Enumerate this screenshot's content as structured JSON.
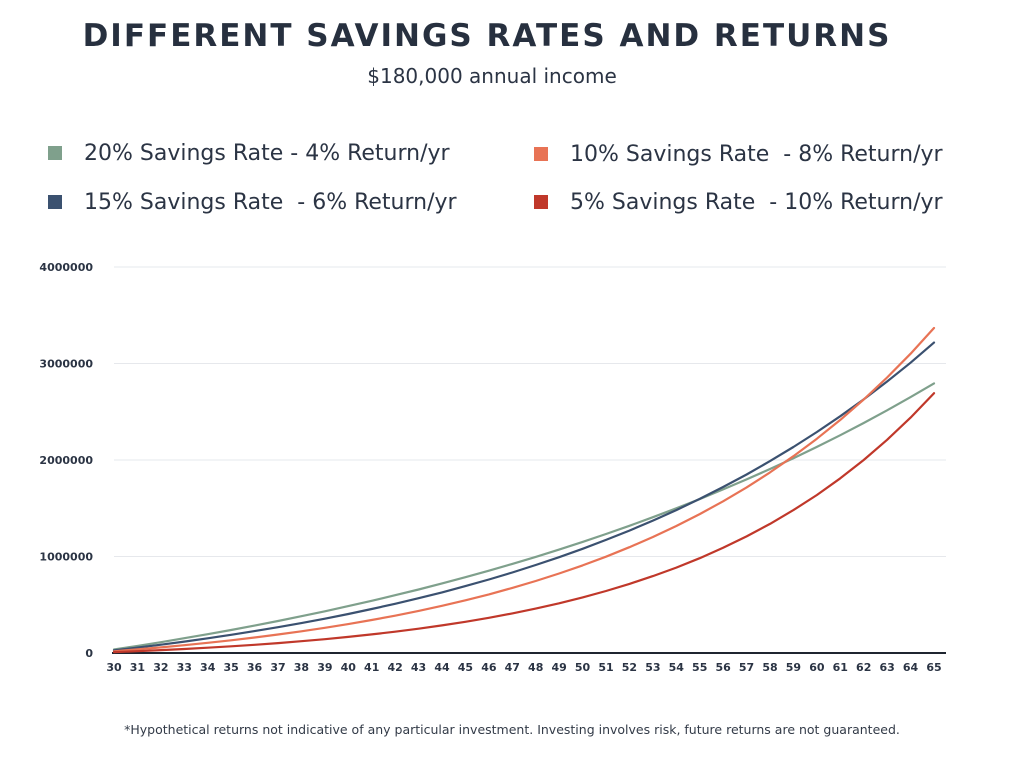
{
  "header": {
    "title": "DIFFERENT SAVINGS RATES AND RETURNS",
    "subtitle": "$180,000 annual income"
  },
  "footnote": "*Hypothetical returns not indicative of any particular investment. Investing involves risk, future returns are not guaranteed.",
  "chart_data": {
    "type": "line",
    "title": "DIFFERENT SAVINGS RATES AND RETURNS",
    "subtitle": "$180,000 annual income",
    "xlabel": "",
    "ylabel": "",
    "x": [
      30,
      31,
      32,
      33,
      34,
      35,
      36,
      37,
      38,
      39,
      40,
      41,
      42,
      43,
      44,
      45,
      46,
      47,
      48,
      49,
      50,
      51,
      52,
      53,
      54,
      55,
      56,
      57,
      58,
      59,
      60,
      61,
      62,
      63,
      64,
      65
    ],
    "x_tick_labels": [
      "30",
      "31",
      "32",
      "33",
      "34",
      "35",
      "36",
      "37",
      "38",
      "39",
      "40",
      "41",
      "42",
      "43",
      "44",
      "45",
      "46",
      "47",
      "48",
      "49",
      "50",
      "51",
      "52",
      "53",
      "54",
      "55",
      "56",
      "57",
      "58",
      "59",
      "60",
      "61",
      "62",
      "63",
      "64",
      "65"
    ],
    "ylim": [
      0,
      4000000
    ],
    "y_ticks": [
      0,
      1000000,
      2000000,
      3000000,
      4000000
    ],
    "y_tick_labels": [
      "0",
      "1000000",
      "2000000",
      "3000000",
      "4000000"
    ],
    "grid": "horizontal",
    "legend_position": "top",
    "series": [
      {
        "name": "20% Savings Rate - 4% Return/yr",
        "color": "#7fa08c",
        "values": [
          36000,
          73440,
          112378,
          152873,
          194988,
          238787,
          284339,
          331712,
          380981,
          432220,
          485509,
          540929,
          598566,
          658508,
          720849,
          785683,
          853110,
          923235,
          996164,
          1072011,
          1150891,
          1232927,
          1318244,
          1406973,
          1499252,
          1595222,
          1695031,
          1798832,
          1906785,
          2019056,
          2135818,
          2257251,
          2383541,
          2514883,
          2651478,
          2793537
        ]
      },
      {
        "name": "15% Savings Rate  - 6% Return/yr",
        "color": "#3b5170",
        "values": [
          27000,
          55620,
          85957,
          118115,
          152202,
          188334,
          226634,
          267232,
          310266,
          355882,
          404234,
          455488,
          509817,
          567406,
          628450,
          693157,
          761746,
          834451,
          911518,
          993209,
          1079802,
          1171590,
          1268885,
          1372018,
          1481339,
          1597219,
          1720052,
          1850255,
          1988270,
          2134566,
          2289640,
          2454018,
          2628259,
          2812954,
          3008731,
          3216255
        ]
      },
      {
        "name": "10% Savings Rate  - 8% Return/yr",
        "color": "#e87355",
        "values": [
          18000,
          37440,
          58435,
          81110,
          105599,
          132047,
          160611,
          191460,
          224777,
          260759,
          299620,
          341590,
          386917,
          435870,
          488740,
          545839,
          607506,
          674107,
          746036,
          823719,
          907616,
          998226,
          1096084,
          1201771,
          1315913,
          1439186,
          1572321,
          1716107,
          1871396,
          2039107,
          2220235,
          2415854,
          2627122,
          2855292,
          3101715,
          3367852
        ]
      },
      {
        "name": "5% Savings Rate  - 10% Return/yr",
        "color": "#c0382a",
        "values": [
          9000,
          18900,
          29790,
          41769,
          54946,
          69440,
          85385,
          102923,
          122215,
          143437,
          166781,
          192459,
          220705,
          251775,
          285953,
          323548,
          364903,
          410393,
          460432,
          515476,
          576023,
          642626,
          715888,
          796477,
          885125,
          982637,
          1089901,
          1207891,
          1337680,
          1480448,
          1637493,
          1810242,
          2000266,
          2209293,
          2439222,
          2692144
        ]
      }
    ]
  }
}
